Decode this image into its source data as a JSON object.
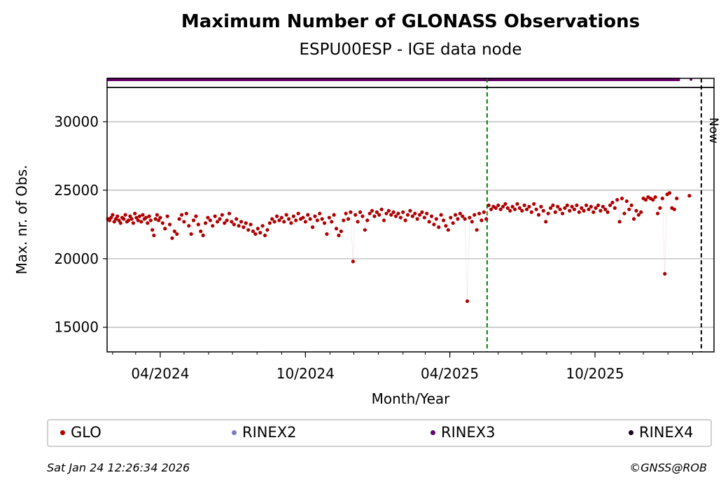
{
  "chart_data": {
    "type": "scatter",
    "title": "Maximum Number of GLONASS Observations",
    "subtitle": "ESPU00ESP - IGE data node",
    "xlabel": "Month/Year",
    "ylabel": "Max. nr. of Obs.",
    "xlim": [
      "2024-01-25",
      "2026-02-28"
    ],
    "ylim": [
      13200,
      32500
    ],
    "x_tick_labels": [
      {
        "date": "2024-04-01",
        "label": "04/2024"
      },
      {
        "date": "2024-10-01",
        "label": "10/2024"
      },
      {
        "date": "2025-04-01",
        "label": "04/2025"
      },
      {
        "date": "2025-10-01",
        "label": "10/2025"
      }
    ],
    "y_ticks": [
      15000,
      20000,
      25000,
      30000
    ],
    "grid": "horizontal",
    "vlines": [
      {
        "date": "2025-05-18",
        "color": "#008000",
        "label": ""
      },
      {
        "date": "2026-02-12",
        "color": "#000000",
        "label": "Now"
      }
    ],
    "series": [
      {
        "name": "GLO",
        "color": "#b00000",
        "points": [
          [
            "2024-01-26",
            22900
          ],
          [
            "2024-01-28",
            22800
          ],
          [
            "2024-01-30",
            23000
          ],
          [
            "2024-02-01",
            23200
          ],
          [
            "2024-02-03",
            22700
          ],
          [
            "2024-02-05",
            22900
          ],
          [
            "2024-02-07",
            23100
          ],
          [
            "2024-02-09",
            22800
          ],
          [
            "2024-02-11",
            22600
          ],
          [
            "2024-02-13",
            23000
          ],
          [
            "2024-02-15",
            22900
          ],
          [
            "2024-02-17",
            23200
          ],
          [
            "2024-02-19",
            22700
          ],
          [
            "2024-02-21",
            22800
          ],
          [
            "2024-02-23",
            23100
          ],
          [
            "2024-02-25",
            22900
          ],
          [
            "2024-02-27",
            22600
          ],
          [
            "2024-02-29",
            23300
          ],
          [
            "2024-03-02",
            23000
          ],
          [
            "2024-03-04",
            22800
          ],
          [
            "2024-03-06",
            23100
          ],
          [
            "2024-03-08",
            22700
          ],
          [
            "2024-03-10",
            23200
          ],
          [
            "2024-03-12",
            22900
          ],
          [
            "2024-03-14",
            23000
          ],
          [
            "2024-03-16",
            22600
          ],
          [
            "2024-03-18",
            23100
          ],
          [
            "2024-03-20",
            22800
          ],
          [
            "2024-03-22",
            22100
          ],
          [
            "2024-03-24",
            21700
          ],
          [
            "2024-03-26",
            22900
          ],
          [
            "2024-03-28",
            23200
          ],
          [
            "2024-03-30",
            22800
          ],
          [
            "2024-04-01",
            23000
          ],
          [
            "2024-04-04",
            22600
          ],
          [
            "2024-04-07",
            22200
          ],
          [
            "2024-04-10",
            23100
          ],
          [
            "2024-04-13",
            22500
          ],
          [
            "2024-04-16",
            21500
          ],
          [
            "2024-04-19",
            22000
          ],
          [
            "2024-04-22",
            21800
          ],
          [
            "2024-04-25",
            22900
          ],
          [
            "2024-04-28",
            23200
          ],
          [
            "2024-05-01",
            22700
          ],
          [
            "2024-05-04",
            23300
          ],
          [
            "2024-05-07",
            22400
          ],
          [
            "2024-05-10",
            21800
          ],
          [
            "2024-05-13",
            22800
          ],
          [
            "2024-05-16",
            23100
          ],
          [
            "2024-05-19",
            22500
          ],
          [
            "2024-05-22",
            22000
          ],
          [
            "2024-05-25",
            21700
          ],
          [
            "2024-05-28",
            22600
          ],
          [
            "2024-05-31",
            23000
          ],
          [
            "2024-06-03",
            22800
          ],
          [
            "2024-06-06",
            22400
          ],
          [
            "2024-06-09",
            23100
          ],
          [
            "2024-06-12",
            22700
          ],
          [
            "2024-06-15",
            22900
          ],
          [
            "2024-06-18",
            23200
          ],
          [
            "2024-06-21",
            22600
          ],
          [
            "2024-06-24",
            22800
          ],
          [
            "2024-06-27",
            23300
          ],
          [
            "2024-06-30",
            22700
          ],
          [
            "2024-07-03",
            22500
          ],
          [
            "2024-07-06",
            22900
          ],
          [
            "2024-07-09",
            22400
          ],
          [
            "2024-07-12",
            22700
          ],
          [
            "2024-07-15",
            22300
          ],
          [
            "2024-07-18",
            22600
          ],
          [
            "2024-07-21",
            22100
          ],
          [
            "2024-07-24",
            22500
          ],
          [
            "2024-07-27",
            22000
          ],
          [
            "2024-07-30",
            21800
          ],
          [
            "2024-08-02",
            22200
          ],
          [
            "2024-08-05",
            21900
          ],
          [
            "2024-08-08",
            22400
          ],
          [
            "2024-08-11",
            21700
          ],
          [
            "2024-08-14",
            22100
          ],
          [
            "2024-08-17",
            22600
          ],
          [
            "2024-08-20",
            22900
          ],
          [
            "2024-08-23",
            22700
          ],
          [
            "2024-08-26",
            23100
          ],
          [
            "2024-08-29",
            22800
          ],
          [
            "2024-09-01",
            23000
          ],
          [
            "2024-09-04",
            22700
          ],
          [
            "2024-09-07",
            23200
          ],
          [
            "2024-09-10",
            22900
          ],
          [
            "2024-09-13",
            22600
          ],
          [
            "2024-09-16",
            23100
          ],
          [
            "2024-09-19",
            22800
          ],
          [
            "2024-09-22",
            23300
          ],
          [
            "2024-09-25",
            22900
          ],
          [
            "2024-09-28",
            23000
          ],
          [
            "2024-10-01",
            22700
          ],
          [
            "2024-10-04",
            23200
          ],
          [
            "2024-10-07",
            22900
          ],
          [
            "2024-10-10",
            22300
          ],
          [
            "2024-10-13",
            23100
          ],
          [
            "2024-10-16",
            22800
          ],
          [
            "2024-10-19",
            23300
          ],
          [
            "2024-10-22",
            22900
          ],
          [
            "2024-10-25",
            22600
          ],
          [
            "2024-10-28",
            21800
          ],
          [
            "2024-10-31",
            23000
          ],
          [
            "2024-11-03",
            22700
          ],
          [
            "2024-11-06",
            23200
          ],
          [
            "2024-11-09",
            22200
          ],
          [
            "2024-11-12",
            21700
          ],
          [
            "2024-11-15",
            22000
          ],
          [
            "2024-11-18",
            22800
          ],
          [
            "2024-11-21",
            23300
          ],
          [
            "2024-11-24",
            22900
          ],
          [
            "2024-11-27",
            23400
          ],
          [
            "2024-11-30",
            19800
          ],
          [
            "2024-12-03",
            23200
          ],
          [
            "2024-12-06",
            22700
          ],
          [
            "2024-12-09",
            23400
          ],
          [
            "2024-12-12",
            23100
          ],
          [
            "2024-12-15",
            22100
          ],
          [
            "2024-12-18",
            22800
          ],
          [
            "2024-12-21",
            23300
          ],
          [
            "2024-12-24",
            23500
          ],
          [
            "2024-12-27",
            23100
          ],
          [
            "2024-12-30",
            23400
          ],
          [
            "2025-01-02",
            23200
          ],
          [
            "2025-01-05",
            23600
          ],
          [
            "2025-01-08",
            22800
          ],
          [
            "2025-01-11",
            23300
          ],
          [
            "2025-01-14",
            23500
          ],
          [
            "2025-01-17",
            23200
          ],
          [
            "2025-01-20",
            23400
          ],
          [
            "2025-01-23",
            23100
          ],
          [
            "2025-01-26",
            23300
          ],
          [
            "2025-01-29",
            23000
          ],
          [
            "2025-02-01",
            23400
          ],
          [
            "2025-02-04",
            22800
          ],
          [
            "2025-02-07",
            23200
          ],
          [
            "2025-02-10",
            23500
          ],
          [
            "2025-02-13",
            23100
          ],
          [
            "2025-02-16",
            23300
          ],
          [
            "2025-02-19",
            22900
          ],
          [
            "2025-02-22",
            23200
          ],
          [
            "2025-02-25",
            23400
          ],
          [
            "2025-02-28",
            23000
          ],
          [
            "2025-03-03",
            23300
          ],
          [
            "2025-03-06",
            22700
          ],
          [
            "2025-03-09",
            23100
          ],
          [
            "2025-03-12",
            22500
          ],
          [
            "2025-03-15",
            22900
          ],
          [
            "2025-03-18",
            22300
          ],
          [
            "2025-03-21",
            23200
          ],
          [
            "2025-03-24",
            22800
          ],
          [
            "2025-03-27",
            22400
          ],
          [
            "2025-03-30",
            22100
          ],
          [
            "2025-04-02",
            23000
          ],
          [
            "2025-04-05",
            22600
          ],
          [
            "2025-04-08",
            23200
          ],
          [
            "2025-04-11",
            22900
          ],
          [
            "2025-04-14",
            23300
          ],
          [
            "2025-04-17",
            23100
          ],
          [
            "2025-04-20",
            22900
          ],
          [
            "2025-04-23",
            16900
          ],
          [
            "2025-04-26",
            23000
          ],
          [
            "2025-04-29",
            22700
          ],
          [
            "2025-05-02",
            23200
          ],
          [
            "2025-05-05",
            22100
          ],
          [
            "2025-05-08",
            23300
          ],
          [
            "2025-05-11",
            22800
          ],
          [
            "2025-05-14",
            23400
          ],
          [
            "2025-05-17",
            22900
          ],
          [
            "2025-05-20",
            23900
          ],
          [
            "2025-05-23",
            23600
          ],
          [
            "2025-05-26",
            23800
          ],
          [
            "2025-05-29",
            23700
          ],
          [
            "2025-06-01",
            23900
          ],
          [
            "2025-06-04",
            23600
          ],
          [
            "2025-06-07",
            23800
          ],
          [
            "2025-06-10",
            24000
          ],
          [
            "2025-06-13",
            23700
          ],
          [
            "2025-06-16",
            23500
          ],
          [
            "2025-06-19",
            23800
          ],
          [
            "2025-06-22",
            23600
          ],
          [
            "2025-06-25",
            24000
          ],
          [
            "2025-06-28",
            23700
          ],
          [
            "2025-07-01",
            23500
          ],
          [
            "2025-07-04",
            23900
          ],
          [
            "2025-07-07",
            23600
          ],
          [
            "2025-07-10",
            23800
          ],
          [
            "2025-07-13",
            23400
          ],
          [
            "2025-07-16",
            24000
          ],
          [
            "2025-07-19",
            23600
          ],
          [
            "2025-07-22",
            23200
          ],
          [
            "2025-07-25",
            23800
          ],
          [
            "2025-07-28",
            23500
          ],
          [
            "2025-07-31",
            22700
          ],
          [
            "2025-08-03",
            23300
          ],
          [
            "2025-08-06",
            23700
          ],
          [
            "2025-08-09",
            23900
          ],
          [
            "2025-08-12",
            23400
          ],
          [
            "2025-08-15",
            23800
          ],
          [
            "2025-08-18",
            23600
          ],
          [
            "2025-08-21",
            23300
          ],
          [
            "2025-08-24",
            23700
          ],
          [
            "2025-08-27",
            23900
          ],
          [
            "2025-08-30",
            23500
          ],
          [
            "2025-09-02",
            23800
          ],
          [
            "2025-09-05",
            23600
          ],
          [
            "2025-09-08",
            23900
          ],
          [
            "2025-09-11",
            23400
          ],
          [
            "2025-09-14",
            23700
          ],
          [
            "2025-09-17",
            23500
          ],
          [
            "2025-09-20",
            23900
          ],
          [
            "2025-09-23",
            23600
          ],
          [
            "2025-09-26",
            23800
          ],
          [
            "2025-09-29",
            23400
          ],
          [
            "2025-10-02",
            23700
          ],
          [
            "2025-10-05",
            23900
          ],
          [
            "2025-10-08",
            23500
          ],
          [
            "2025-10-11",
            23800
          ],
          [
            "2025-10-14",
            23600
          ],
          [
            "2025-10-17",
            23400
          ],
          [
            "2025-10-20",
            23900
          ],
          [
            "2025-10-23",
            24100
          ],
          [
            "2025-10-26",
            23700
          ],
          [
            "2025-10-29",
            24300
          ],
          [
            "2025-11-01",
            22700
          ],
          [
            "2025-11-04",
            24400
          ],
          [
            "2025-11-07",
            23300
          ],
          [
            "2025-11-10",
            24200
          ],
          [
            "2025-11-13",
            23600
          ],
          [
            "2025-11-16",
            23900
          ],
          [
            "2025-11-19",
            22900
          ],
          [
            "2025-11-22",
            23500
          ],
          [
            "2025-11-25",
            23200
          ],
          [
            "2025-11-28",
            23400
          ],
          [
            "2025-12-01",
            24400
          ],
          [
            "2025-12-04",
            24300
          ],
          [
            "2025-12-07",
            24500
          ],
          [
            "2025-12-10",
            24400
          ],
          [
            "2025-12-13",
            24300
          ],
          [
            "2025-12-16",
            24500
          ],
          [
            "2025-12-19",
            23300
          ],
          [
            "2025-12-22",
            23700
          ],
          [
            "2025-12-25",
            24400
          ],
          [
            "2025-12-28",
            18900
          ],
          [
            "2025-12-31",
            24700
          ],
          [
            "2026-01-03",
            24800
          ],
          [
            "2026-01-06",
            23700
          ],
          [
            "2026-01-09",
            23600
          ],
          [
            "2026-01-12",
            24400
          ],
          [
            "2026-01-28",
            24600
          ]
        ]
      },
      {
        "name": "RINEX2",
        "color": "#7b7bbf",
        "points": []
      },
      {
        "name": "RINEX3",
        "color": "#6a006a",
        "strip": [
          "2024-01-25",
          "2026-01-16"
        ],
        "extra": [
          "2026-01-30"
        ]
      },
      {
        "name": "RINEX4",
        "color": "#1a0020",
        "points": []
      }
    ]
  },
  "legend": {
    "items": [
      {
        "label": "GLO",
        "color": "#b00000"
      },
      {
        "label": "RINEX2",
        "color": "#7b7bbf"
      },
      {
        "label": "RINEX3",
        "color": "#6a006a"
      },
      {
        "label": "RINEX4",
        "color": "#1a0020"
      }
    ]
  },
  "footer": {
    "timestamp": "Sat Jan 24 12:26:34 2026",
    "credit": "©GNSS@ROB"
  }
}
